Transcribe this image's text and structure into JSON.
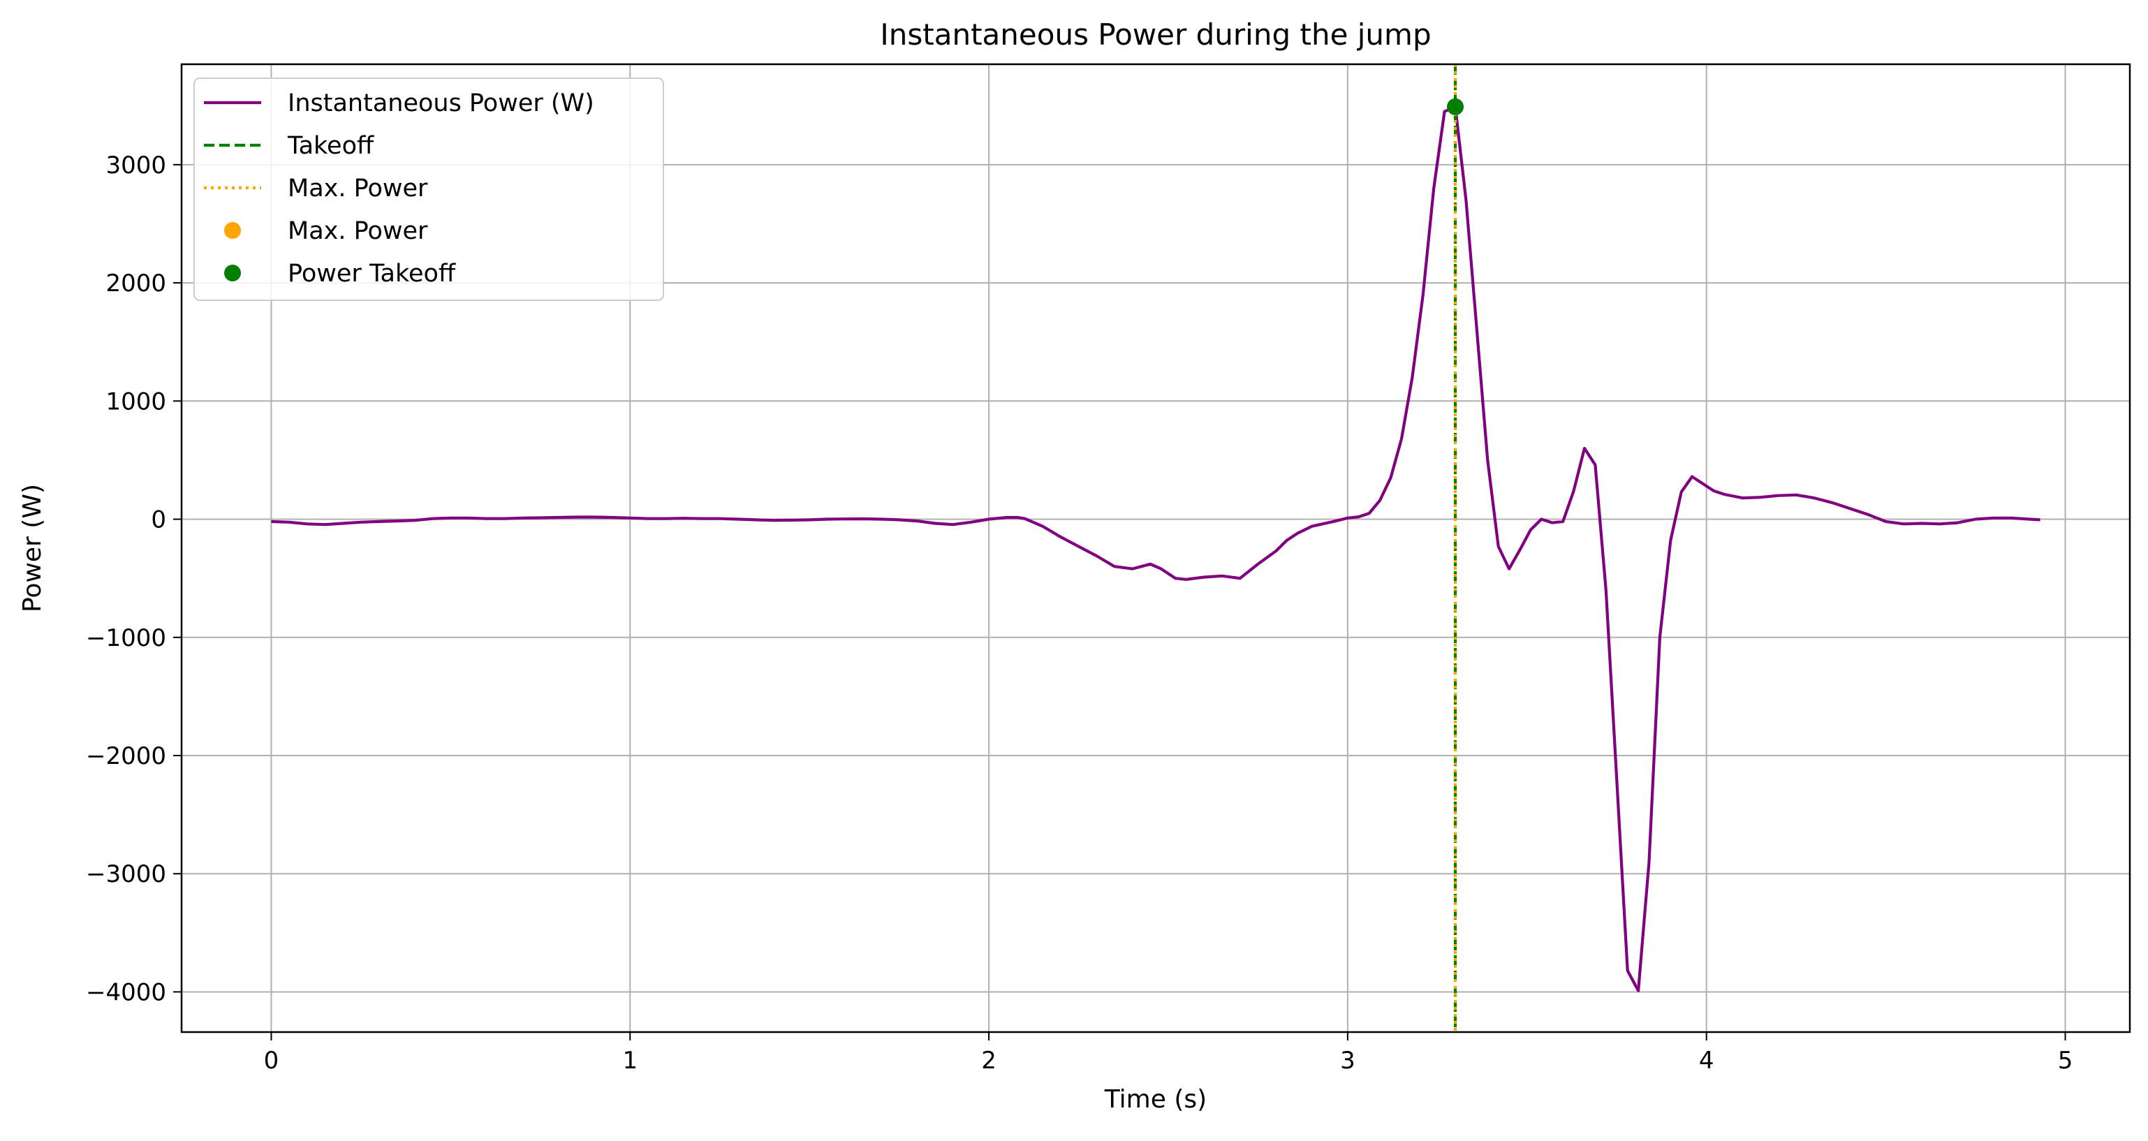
{
  "chart_data": {
    "type": "line",
    "title": "Instantaneous Power during the jump",
    "xlabel": "Time (s)",
    "ylabel": "Power (W)",
    "xlim": [
      -0.25,
      5.18
    ],
    "ylim": [
      -4340,
      3850
    ],
    "xticks": [
      0,
      1,
      2,
      3,
      4,
      5
    ],
    "xtick_labels": [
      "0",
      "1",
      "2",
      "3",
      "4",
      "5"
    ],
    "yticks": [
      -4000,
      -3000,
      -2000,
      -1000,
      0,
      1000,
      2000,
      3000
    ],
    "ytick_labels": [
      "−4000",
      "−3000",
      "−2000",
      "−1000",
      "0",
      "1000",
      "2000",
      "3000"
    ],
    "grid": true,
    "legend_position": "upper-left",
    "colors": {
      "power_line": "#800080",
      "takeoff": "#008000",
      "max_power": "#FFA500",
      "grid": "#b0b0b0"
    },
    "series": [
      {
        "name": "Instantaneous Power (W)",
        "style": "solid",
        "color": "#800080",
        "x": [
          0.0,
          0.05,
          0.1,
          0.15,
          0.2,
          0.25,
          0.3,
          0.35,
          0.4,
          0.45,
          0.5,
          0.55,
          0.6,
          0.65,
          0.7,
          0.75,
          0.8,
          0.85,
          0.9,
          0.95,
          1.0,
          1.05,
          1.1,
          1.15,
          1.2,
          1.25,
          1.3,
          1.35,
          1.4,
          1.45,
          1.5,
          1.55,
          1.6,
          1.65,
          1.7,
          1.75,
          1.8,
          1.85,
          1.9,
          1.95,
          2.0,
          2.05,
          2.08,
          2.1,
          2.15,
          2.2,
          2.25,
          2.3,
          2.35,
          2.4,
          2.45,
          2.48,
          2.52,
          2.55,
          2.6,
          2.65,
          2.7,
          2.75,
          2.8,
          2.83,
          2.86,
          2.9,
          2.93,
          2.96,
          3.0,
          3.03,
          3.06,
          3.09,
          3.12,
          3.15,
          3.18,
          3.21,
          3.24,
          3.27,
          3.3,
          3.33,
          3.36,
          3.39,
          3.42,
          3.45,
          3.48,
          3.51,
          3.54,
          3.57,
          3.6,
          3.63,
          3.66,
          3.69,
          3.72,
          3.75,
          3.78,
          3.81,
          3.84,
          3.87,
          3.9,
          3.93,
          3.96,
          3.99,
          4.02,
          4.05,
          4.1,
          4.15,
          4.2,
          4.25,
          4.3,
          4.35,
          4.4,
          4.45,
          4.5,
          4.55,
          4.6,
          4.65,
          4.7,
          4.75,
          4.8,
          4.85,
          4.9,
          4.93
        ],
        "y": [
          -20,
          -25,
          -40,
          -45,
          -35,
          -25,
          -20,
          -15,
          -10,
          5,
          10,
          10,
          5,
          5,
          10,
          12,
          15,
          18,
          18,
          15,
          10,
          5,
          5,
          8,
          5,
          5,
          0,
          -5,
          -10,
          -8,
          -5,
          0,
          2,
          3,
          0,
          -5,
          -15,
          -35,
          -45,
          -25,
          0,
          15,
          15,
          5,
          -60,
          -150,
          -230,
          -310,
          -400,
          -420,
          -380,
          -420,
          -500,
          -510,
          -490,
          -480,
          -500,
          -380,
          -270,
          -180,
          -120,
          -60,
          -40,
          -20,
          10,
          20,
          50,
          160,
          350,
          680,
          1200,
          1900,
          2800,
          3450,
          3490,
          2700,
          1600,
          500,
          -230,
          -420,
          -260,
          -90,
          0,
          -30,
          -20,
          240,
          600,
          460,
          -600,
          -2200,
          -3820,
          -3990,
          -2900,
          -1000,
          -180,
          230,
          360,
          300,
          240,
          210,
          180,
          185,
          200,
          205,
          180,
          140,
          90,
          40,
          -20,
          -40,
          -35,
          -40,
          -30,
          0,
          10,
          10,
          0,
          -5
        ]
      },
      {
        "name": "Takeoff",
        "style": "dashed-vertical",
        "color": "#008000",
        "x": [
          3.3
        ]
      },
      {
        "name": "Max. Power",
        "style": "dotted-vertical",
        "color": "#FFA500",
        "x": [
          3.3
        ]
      },
      {
        "name": "Max. Power",
        "style": "marker",
        "color": "#FFA500",
        "x": [
          3.3
        ],
        "y": [
          3490
        ]
      },
      {
        "name": "Power Takeoff",
        "style": "marker",
        "color": "#008000",
        "x": [
          3.3
        ],
        "y": [
          3490
        ]
      }
    ]
  }
}
